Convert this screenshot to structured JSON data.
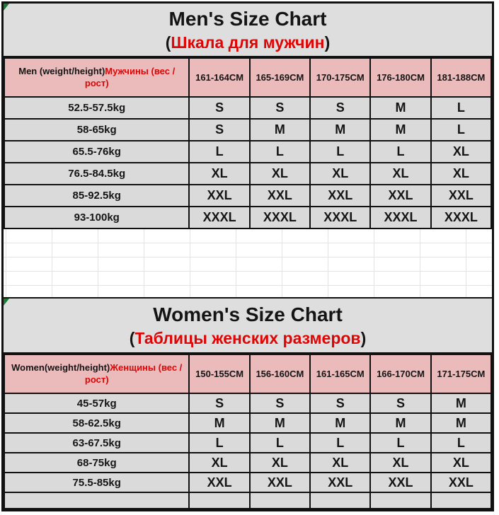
{
  "colors": {
    "header_pink": "#ebbaba",
    "row_gray": "#dadada",
    "title_gray": "#dedede",
    "accent_red": "#e00505",
    "border_black": "#111111",
    "corner_marker_green": "#1f7a36"
  },
  "men": {
    "title": "Men's Size Chart",
    "paren_open": "(",
    "subtitle_ru": "Шкала для мужчин",
    "paren_close": ")",
    "row_header_en": "Men (weight/height)",
    "row_header_ru": "Мужчины (вес / рост)",
    "columns": [
      "161-164CM",
      "165-169CM",
      "170-175CM",
      "176-180CM",
      "181-188CM"
    ],
    "rows": [
      {
        "weight": "52.5-57.5kg",
        "sizes": [
          "S",
          "S",
          "S",
          "M",
          "L"
        ]
      },
      {
        "weight": "58-65kg",
        "sizes": [
          "S",
          "M",
          "M",
          "M",
          "L"
        ]
      },
      {
        "weight": "65.5-76kg",
        "sizes": [
          "L",
          "L",
          "L",
          "L",
          "XL"
        ]
      },
      {
        "weight": "76.5-84.5kg",
        "sizes": [
          "XL",
          "XL",
          "XL",
          "XL",
          "XL"
        ]
      },
      {
        "weight": "85-92.5kg",
        "sizes": [
          "XXL",
          "XXL",
          "XXL",
          "XXL",
          "XXL"
        ]
      },
      {
        "weight": "93-100kg",
        "sizes": [
          "XXXL",
          "XXXL",
          "XXXL",
          "XXXL",
          "XXXL"
        ]
      }
    ]
  },
  "women": {
    "title": "Women's Size Chart",
    "paren_open": "(",
    "subtitle_ru": "Таблицы женских размеров",
    "paren_close": ")",
    "row_header_en": "Women(weight/height)",
    "row_header_ru": "Женщины (вес / рост)",
    "columns": [
      "150-155CM",
      "156-160CM",
      "161-165CM",
      "166-170CM",
      "171-175CM"
    ],
    "rows": [
      {
        "weight": "45-57kg",
        "sizes": [
          "S",
          "S",
          "S",
          "S",
          "M"
        ]
      },
      {
        "weight": "58-62.5kg",
        "sizes": [
          "M",
          "M",
          "M",
          "M",
          "M"
        ]
      },
      {
        "weight": "63-67.5kg",
        "sizes": [
          "L",
          "L",
          "L",
          "L",
          "L"
        ]
      },
      {
        "weight": "68-75kg",
        "sizes": [
          "XL",
          "XL",
          "XL",
          "XL",
          "XL"
        ]
      },
      {
        "weight": "75.5-85kg",
        "sizes": [
          "XXL",
          "XXL",
          "XXL",
          "XXL",
          "XXL"
        ]
      }
    ]
  }
}
